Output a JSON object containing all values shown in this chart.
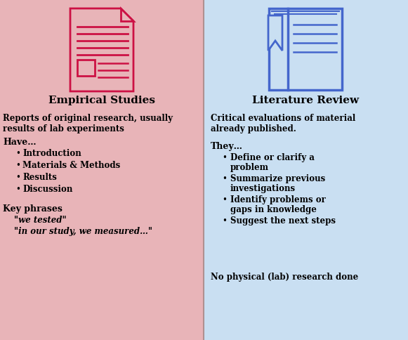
{
  "left_bg": "#e8b4b8",
  "right_bg": "#c9dff2",
  "left_title": "Empirical Studies",
  "right_title": "Literature Review",
  "left_desc": "Reports of original research, usually\nresults of lab experiments",
  "right_desc": "Critical evaluations of material\nalready published.",
  "left_section1_header": "Have…",
  "left_bullets": [
    "Introduction",
    "Materials & Methods",
    "Results",
    "Discussion"
  ],
  "left_section2_header": "Key phrases",
  "left_phrases": [
    "\"we tested\"",
    "\"in our study, we measured…\""
  ],
  "right_section1_header": "They…",
  "right_bullets": [
    "Define or clarify a\nproblem",
    "Summarize previous\ninvestigations",
    "Identify problems or\ngaps in knowledge",
    "Suggest the next steps"
  ],
  "right_footer": "No physical (lab) research done",
  "left_icon_color": "#cc1144",
  "right_icon_color": "#4466cc",
  "divider_color": "#b09090",
  "title_fontsize": 11,
  "body_fontsize": 8.5,
  "header_fontsize": 9
}
